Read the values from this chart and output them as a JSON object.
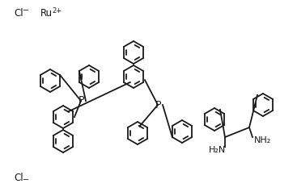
{
  "background_color": "#ffffff",
  "line_color": "#1a1a1a",
  "text_color": "#1a1a1a",
  "line_width": 1.3,
  "figsize": [
    3.67,
    2.38
  ],
  "dpi": 100,
  "labels": {
    "cl_top": "Cl",
    "cl_top_charge": "−",
    "ru": "Ru",
    "ru_charge": "2+",
    "cl_bot": "Cl",
    "cl_bot_charge": "−",
    "p_left": "P",
    "p_right": "P",
    "h2n_left": "H₂N",
    "nh2_right": "NH₂"
  }
}
